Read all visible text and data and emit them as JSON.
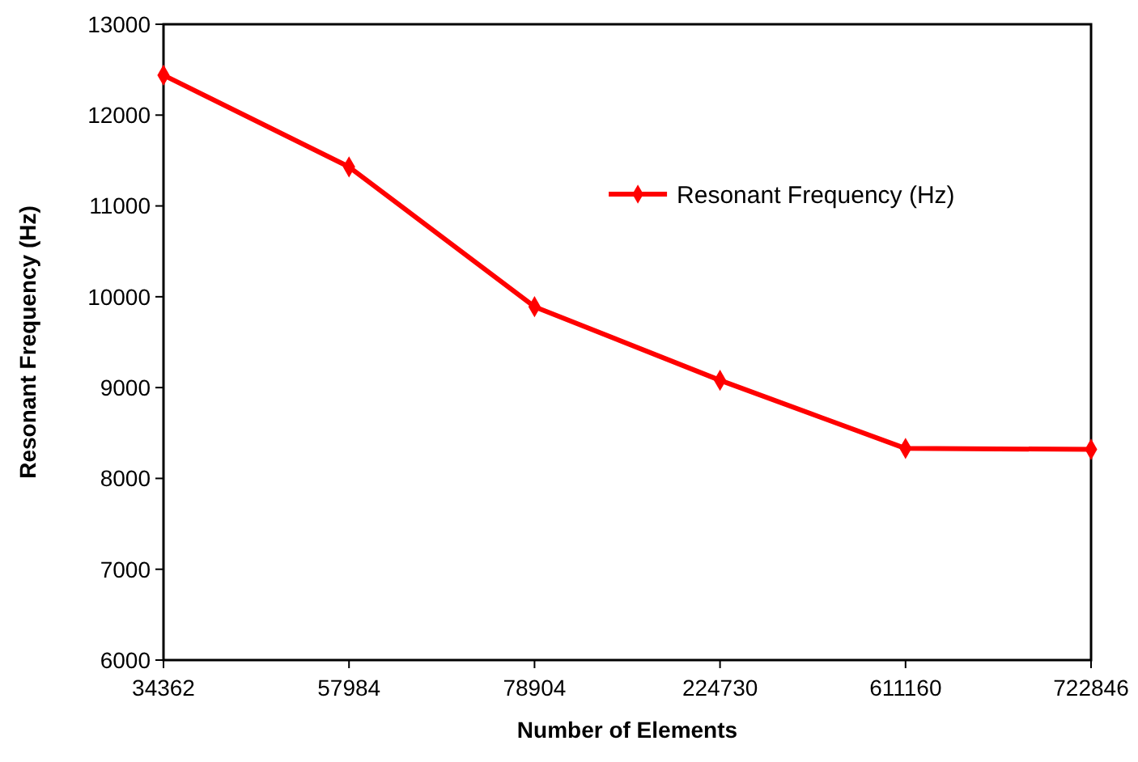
{
  "chart_data": {
    "type": "line",
    "xlabel": "Number of Elements",
    "ylabel": "Resonant Frequency (Hz)",
    "categories": [
      "34362",
      "57984",
      "78904",
      "224730",
      "611160",
      "722846"
    ],
    "series": [
      {
        "name": "Resonant Frequency (Hz)",
        "color": "#ff0000",
        "values": [
          12440,
          11430,
          9890,
          9080,
          8330,
          8320
        ]
      }
    ],
    "ylim": [
      6000,
      13000
    ],
    "yticks": [
      6000,
      7000,
      8000,
      9000,
      10000,
      11000,
      12000,
      13000
    ],
    "grid": false,
    "legend": "top right",
    "marker": "diamond",
    "line_style": "solid"
  }
}
